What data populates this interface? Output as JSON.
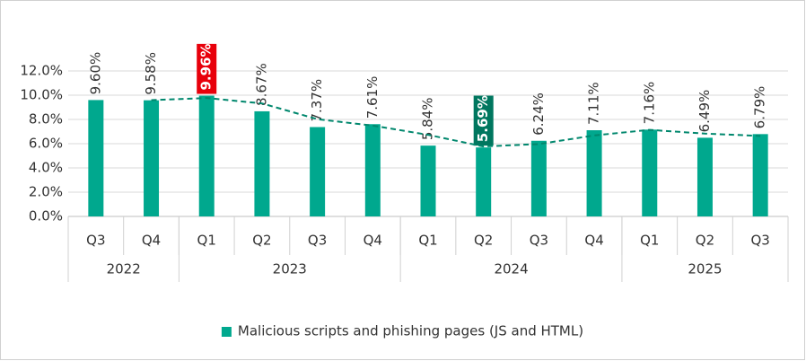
{
  "chart_data": {
    "type": "bar",
    "categories": [
      "Q3",
      "Q4",
      "Q1",
      "Q2",
      "Q3",
      "Q4",
      "Q1",
      "Q2",
      "Q3",
      "Q4",
      "Q1",
      "Q2",
      "Q3"
    ],
    "groups": [
      {
        "label": "2022",
        "count": 2
      },
      {
        "label": "2023",
        "count": 4
      },
      {
        "label": "2024",
        "count": 4
      },
      {
        "label": "2025",
        "count": 3
      }
    ],
    "series": [
      {
        "name": "Malicious scripts and phishing pages (JS and HTML)",
        "color": "#00a88e",
        "values": [
          9.6,
          9.58,
          9.96,
          8.67,
          7.37,
          7.61,
          5.84,
          5.69,
          6.24,
          7.11,
          7.16,
          6.49,
          6.79
        ],
        "value_labels": [
          "9.60%",
          "9.58%",
          "9.96%",
          "8.67%",
          "7.37%",
          "7.61%",
          "5.84%",
          "5.69%",
          "6.24%",
          "7.11%",
          "7.16%",
          "6.49%",
          "6.79%"
        ]
      }
    ],
    "highlights": [
      {
        "index": 2,
        "color": "#e8000b"
      },
      {
        "index": 7,
        "color": "#00775f"
      }
    ],
    "trend_line": {
      "color": "#00876d",
      "dashed": true,
      "values": [
        null,
        9.59,
        9.77,
        9.32,
        8.02,
        7.49,
        6.73,
        5.77,
        5.97,
        6.68,
        7.14,
        6.83,
        6.64
      ]
    },
    "ylim": [
      0,
      12
    ],
    "yticks": [
      {
        "value": 0,
        "label": "0.0%"
      },
      {
        "value": 2,
        "label": "2.0%"
      },
      {
        "value": 4,
        "label": "4.0%"
      },
      {
        "value": 6,
        "label": "6.0%"
      },
      {
        "value": 8,
        "label": "8.0%"
      },
      {
        "value": 10,
        "label": "10.0%"
      },
      {
        "value": 12,
        "label": "12.0%"
      }
    ],
    "grid": true,
    "legend": "bottom"
  }
}
